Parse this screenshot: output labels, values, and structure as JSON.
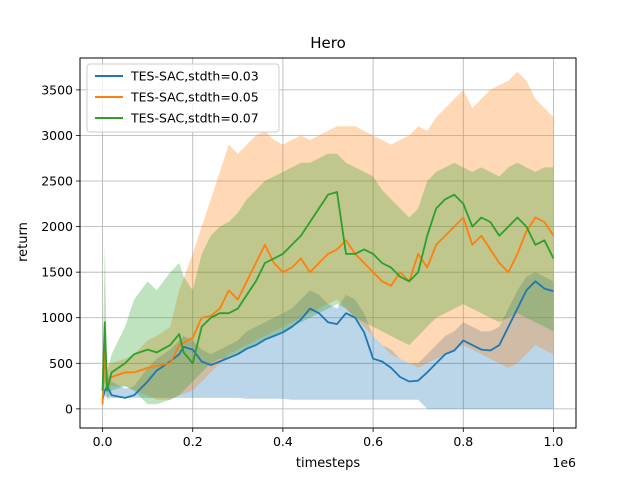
{
  "chart_data": {
    "type": "line",
    "title": "Hero",
    "xlabel": "timesteps",
    "ylabel": "return",
    "x_scale_label": "1e6",
    "xlim": [
      -0.05,
      1.05
    ],
    "ylim": [
      -210,
      3850
    ],
    "x_ticks": [
      0.0,
      0.2,
      0.4,
      0.6,
      0.8,
      1.0
    ],
    "x_tick_labels": [
      "0.0",
      "0.2",
      "0.4",
      "0.6",
      "0.8",
      "1.0"
    ],
    "y_ticks": [
      0,
      500,
      1000,
      1500,
      2000,
      2500,
      3000,
      3500
    ],
    "y_tick_labels": [
      "0",
      "500",
      "1000",
      "1500",
      "2000",
      "2500",
      "3000",
      "3500"
    ],
    "grid": true,
    "legend_position": "top-left",
    "series": [
      {
        "name": "TES-SAC,stdth=0.03",
        "color": "#1f77b4",
        "x": [
          0.0,
          0.005,
          0.01,
          0.02,
          0.05,
          0.07,
          0.1,
          0.12,
          0.15,
          0.17,
          0.18,
          0.2,
          0.22,
          0.24,
          0.26,
          0.28,
          0.3,
          0.32,
          0.34,
          0.36,
          0.38,
          0.4,
          0.42,
          0.44,
          0.46,
          0.48,
          0.5,
          0.52,
          0.54,
          0.56,
          0.58,
          0.6,
          0.62,
          0.64,
          0.66,
          0.68,
          0.7,
          0.72,
          0.74,
          0.76,
          0.78,
          0.8,
          0.82,
          0.84,
          0.86,
          0.88,
          0.9,
          0.92,
          0.94,
          0.96,
          0.98,
          1.0
        ],
        "values": [
          100,
          200,
          250,
          150,
          120,
          150,
          300,
          420,
          520,
          600,
          680,
          650,
          520,
          480,
          520,
          560,
          600,
          660,
          700,
          760,
          800,
          840,
          900,
          980,
          1100,
          1050,
          950,
          930,
          1050,
          1000,
          840,
          550,
          520,
          450,
          350,
          300,
          310,
          400,
          500,
          600,
          640,
          750,
          700,
          650,
          640,
          700,
          900,
          1100,
          1300,
          1400,
          1320,
          1290
        ],
        "band_low": [
          100,
          150,
          120,
          120,
          120,
          120,
          120,
          120,
          120,
          120,
          120,
          120,
          120,
          120,
          120,
          120,
          120,
          110,
          110,
          110,
          110,
          110,
          100,
          100,
          100,
          100,
          100,
          100,
          100,
          100,
          100,
          100,
          100,
          100,
          100,
          100,
          100,
          0,
          0,
          0,
          0,
          0,
          0,
          0,
          0,
          0,
          0,
          0,
          0,
          0,
          0,
          0
        ],
        "band_high": [
          250,
          500,
          400,
          300,
          220,
          250,
          450,
          550,
          650,
          750,
          800,
          750,
          650,
          600,
          650,
          700,
          750,
          850,
          900,
          950,
          1000,
          1050,
          1100,
          1200,
          1300,
          1250,
          1150,
          1100,
          1250,
          1200,
          1050,
          800,
          700,
          650,
          550,
          500,
          500,
          600,
          700,
          800,
          850,
          950,
          900,
          850,
          850,
          900,
          1100,
          1300,
          1450,
          1500,
          1450,
          1400
        ]
      },
      {
        "name": "TES-SAC,stdth=0.05",
        "color": "#ff7f0e",
        "x": [
          0.0,
          0.005,
          0.01,
          0.02,
          0.05,
          0.07,
          0.1,
          0.12,
          0.15,
          0.17,
          0.2,
          0.22,
          0.24,
          0.26,
          0.28,
          0.3,
          0.32,
          0.34,
          0.36,
          0.38,
          0.4,
          0.42,
          0.44,
          0.46,
          0.48,
          0.5,
          0.52,
          0.54,
          0.56,
          0.58,
          0.6,
          0.62,
          0.64,
          0.66,
          0.68,
          0.7,
          0.72,
          0.74,
          0.76,
          0.78,
          0.8,
          0.82,
          0.84,
          0.86,
          0.88,
          0.9,
          0.92,
          0.94,
          0.96,
          0.98,
          1.0
        ],
        "values": [
          50,
          640,
          300,
          350,
          400,
          400,
          450,
          470,
          500,
          700,
          780,
          1000,
          1020,
          1100,
          1300,
          1200,
          1400,
          1600,
          1800,
          1600,
          1500,
          1550,
          1650,
          1500,
          1600,
          1700,
          1750,
          1850,
          1700,
          1600,
          1500,
          1400,
          1350,
          1500,
          1400,
          1700,
          1550,
          1800,
          1900,
          2000,
          2100,
          1800,
          1900,
          1750,
          1600,
          1500,
          1700,
          1950,
          2100,
          2050,
          1900
        ],
        "band_low": [
          0,
          300,
          200,
          250,
          250,
          200,
          150,
          100,
          100,
          150,
          200,
          300,
          400,
          500,
          600,
          650,
          700,
          750,
          800,
          850,
          900,
          950,
          1000,
          1050,
          1100,
          1150,
          1200,
          1100,
          1000,
          900,
          800,
          700,
          600,
          550,
          500,
          450,
          500,
          550,
          600,
          650,
          700,
          650,
          600,
          550,
          500,
          450,
          500,
          600,
          700,
          650,
          600
        ],
        "band_high": [
          100,
          900,
          500,
          500,
          550,
          600,
          750,
          800,
          900,
          1300,
          1700,
          2000,
          2300,
          2600,
          2900,
          2800,
          2900,
          3000,
          3050,
          2950,
          2900,
          2950,
          3000,
          2950,
          3000,
          3050,
          3100,
          3100,
          3100,
          3050,
          3000,
          2950,
          2900,
          2950,
          3000,
          3100,
          3050,
          3200,
          3300,
          3400,
          3500,
          3300,
          3400,
          3500,
          3550,
          3600,
          3700,
          3600,
          3400,
          3300,
          3200
        ]
      },
      {
        "name": "TES-SAC,stdth=0.07",
        "color": "#2ca02c",
        "x": [
          0.0,
          0.005,
          0.01,
          0.015,
          0.02,
          0.05,
          0.07,
          0.1,
          0.12,
          0.15,
          0.17,
          0.18,
          0.2,
          0.22,
          0.24,
          0.26,
          0.28,
          0.3,
          0.32,
          0.34,
          0.36,
          0.38,
          0.4,
          0.42,
          0.44,
          0.46,
          0.48,
          0.5,
          0.52,
          0.54,
          0.56,
          0.58,
          0.6,
          0.62,
          0.64,
          0.66,
          0.68,
          0.7,
          0.72,
          0.74,
          0.76,
          0.78,
          0.8,
          0.82,
          0.84,
          0.86,
          0.88,
          0.9,
          0.92,
          0.94,
          0.96,
          0.98,
          1.0
        ],
        "values": [
          200,
          950,
          200,
          300,
          400,
          500,
          600,
          650,
          620,
          700,
          820,
          620,
          500,
          900,
          1000,
          1050,
          1050,
          1100,
          1250,
          1400,
          1600,
          1650,
          1700,
          1800,
          1900,
          2050,
          2200,
          2350,
          2380,
          1700,
          1700,
          1750,
          1700,
          1600,
          1550,
          1450,
          1400,
          1500,
          1900,
          2200,
          2300,
          2350,
          2250,
          2000,
          2100,
          2050,
          1900,
          2000,
          2100,
          2000,
          1800,
          1850,
          1650
        ],
        "band_low": [
          100,
          300,
          100,
          150,
          200,
          250,
          200,
          50,
          50,
          100,
          150,
          200,
          300,
          400,
          500,
          550,
          550,
          600,
          650,
          700,
          750,
          800,
          850,
          900,
          950,
          1000,
          1050,
          1100,
          1150,
          1100,
          1000,
          950,
          900,
          850,
          800,
          750,
          700,
          800,
          900,
          1000,
          1050,
          1100,
          1150,
          1100,
          1050,
          1000,
          950,
          1000,
          1050,
          1000,
          950,
          900,
          850
        ],
        "band_high": [
          300,
          1800,
          400,
          500,
          600,
          900,
          1200,
          1400,
          1300,
          1500,
          1600,
          1450,
          1300,
          1700,
          1900,
          2000,
          2050,
          2150,
          2300,
          2400,
          2500,
          2550,
          2600,
          2650,
          2700,
          2700,
          2750,
          2800,
          2800,
          2700,
          2650,
          2600,
          2550,
          2400,
          2300,
          2200,
          2100,
          2200,
          2500,
          2600,
          2650,
          2700,
          2650,
          2600,
          2650,
          2600,
          2550,
          2650,
          2700,
          2650,
          2600,
          2650,
          2650
        ]
      }
    ]
  }
}
